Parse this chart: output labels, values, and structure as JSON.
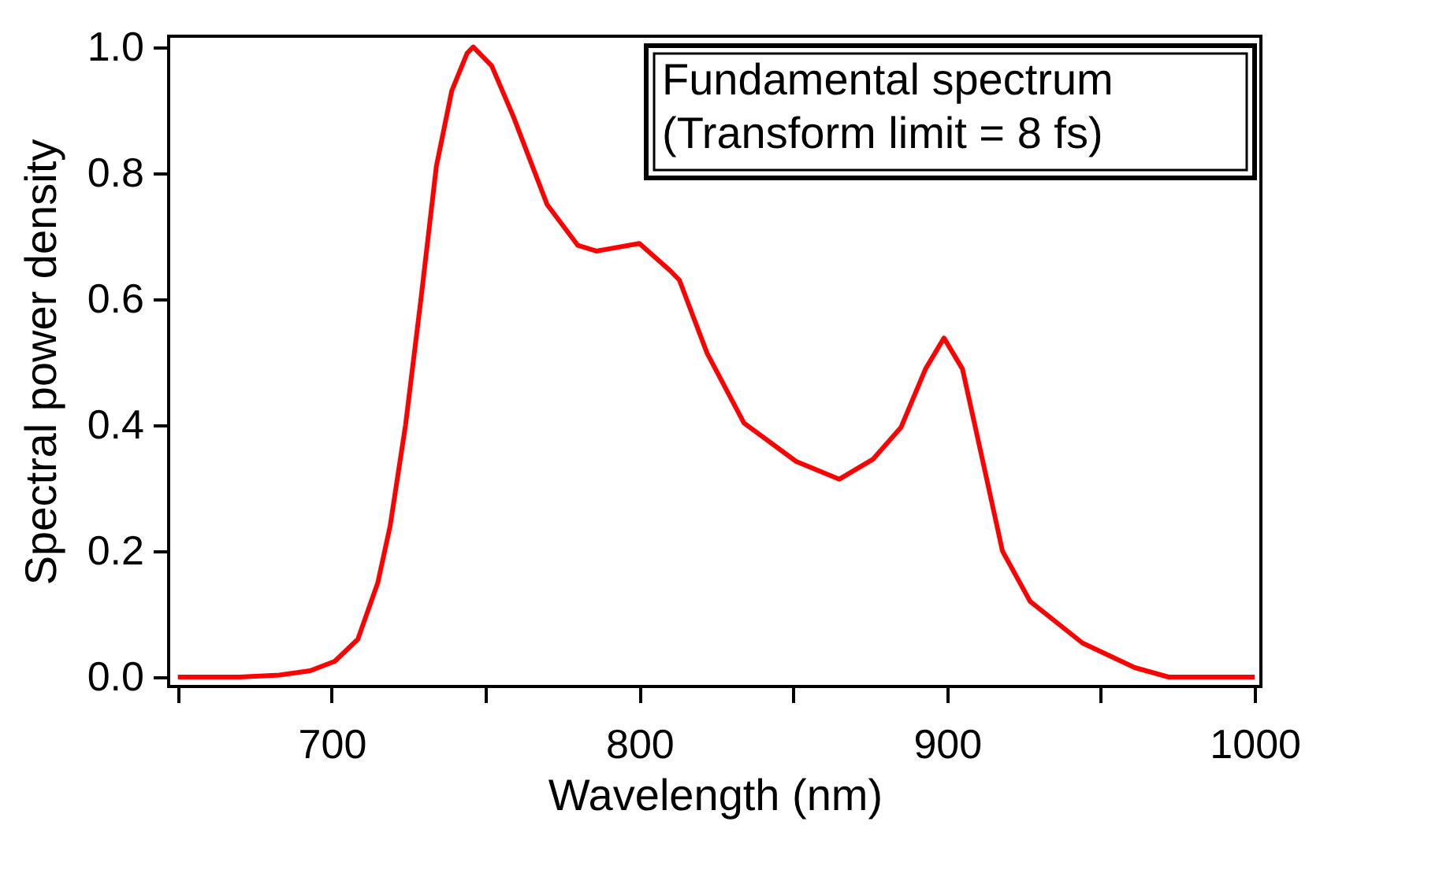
{
  "chart_data": {
    "type": "line",
    "xlabel": "Wavelength (nm)",
    "ylabel": "Spectral power density",
    "annotations": [
      "Fundamental spectrum",
      "(Transform limit = 8 fs)"
    ],
    "xlim": [
      647,
      1002
    ],
    "ylim": [
      -0.015,
      1.017
    ],
    "xticks": [
      {
        "value": 650,
        "label": null
      },
      700,
      {
        "value": 750,
        "label": null
      },
      800,
      {
        "value": 850,
        "label": null
      },
      900,
      {
        "value": 950,
        "label": null
      },
      1000
    ],
    "yticks": [
      {
        "value": 0,
        "label": "0.0"
      },
      0.2,
      0.4,
      0.6,
      0.8,
      {
        "value": 1,
        "label": "1.0"
      }
    ],
    "grid": false,
    "marker": "none",
    "line_style": "solid",
    "series": [
      {
        "color": "#ff0000",
        "x": [
          650,
          670,
          683,
          693,
          701,
          708.5,
          715,
          719,
          724,
          729,
          734,
          739,
          744,
          746,
          752,
          759,
          770,
          780,
          786,
          800,
          810,
          813,
          822,
          834,
          851,
          865,
          876,
          885,
          893,
          899,
          905,
          912,
          918,
          927,
          944,
          961,
          972,
          1000
        ],
        "values": [
          0,
          0,
          0.003,
          0.01,
          0.025,
          0.06,
          0.15,
          0.24,
          0.4,
          0.6,
          0.81,
          0.93,
          0.99,
          1.0,
          0.97,
          0.89,
          0.75,
          0.685,
          0.676,
          0.688,
          0.645,
          0.63,
          0.514,
          0.403,
          0.342,
          0.314,
          0.346,
          0.396,
          0.489,
          0.538,
          0.489,
          0.334,
          0.2,
          0.12,
          0.054,
          0.015,
          0,
          0
        ]
      }
    ]
  }
}
